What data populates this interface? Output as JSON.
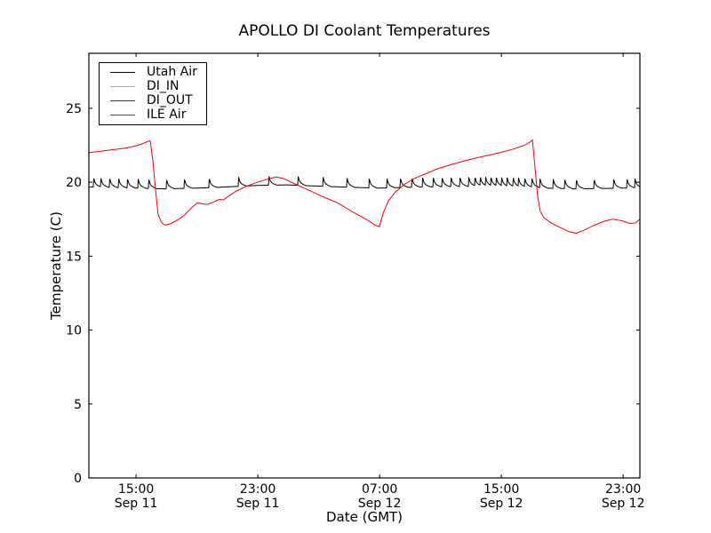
{
  "chart_data": {
    "type": "line",
    "title": "APOLLO DI Coolant Temperatures",
    "xlabel": "Date (GMT)",
    "ylabel": "Temperature (C)",
    "grid": false,
    "background": "#ffffff",
    "axis_color": "#000000",
    "xlim_hours": [
      0,
      36.2
    ],
    "ylim": [
      0,
      28.72
    ],
    "yticks": [
      0,
      5,
      10,
      15,
      20,
      25
    ],
    "xticks": [
      {
        "t": 3.1,
        "time": "15:00",
        "date": "Sep 11"
      },
      {
        "t": 11.1,
        "time": "23:00",
        "date": "Sep 11"
      },
      {
        "t": 19.1,
        "time": "07:00",
        "date": "Sep 12"
      },
      {
        "t": 27.1,
        "time": "15:00",
        "date": "Sep 12"
      },
      {
        "t": 35.1,
        "time": "23:00",
        "date": "Sep 12"
      }
    ],
    "legend": {
      "position": "upper-left",
      "entries": [
        {
          "label": "Utah Air",
          "color": "#000000"
        },
        {
          "label": "DI_IN",
          "color": "#ffa500"
        },
        {
          "label": "DI_OUT",
          "color": "#800080"
        },
        {
          "label": "ILE Air",
          "color": "#ff0000"
        }
      ]
    },
    "series": [
      {
        "name": "Utah Air",
        "color": "#000000",
        "render": "baseline_spikes",
        "opacity": 1,
        "baseline": [
          [
            0,
            19.68
          ],
          [
            2.5,
            19.62
          ],
          [
            5,
            19.55
          ],
          [
            8,
            19.63
          ],
          [
            11,
            19.78
          ],
          [
            13,
            19.82
          ],
          [
            16,
            19.7
          ],
          [
            19,
            19.6
          ],
          [
            22,
            19.68
          ],
          [
            26,
            19.73
          ],
          [
            29,
            19.66
          ],
          [
            30,
            19.6
          ],
          [
            32,
            19.55
          ],
          [
            34,
            19.58
          ],
          [
            36.2,
            19.62
          ]
        ],
        "spike_profile": [
          [
            0,
            0
          ],
          [
            0.03,
            0.62
          ],
          [
            0.1,
            0.34
          ],
          [
            0.2,
            0.18
          ],
          [
            0.35,
            0.08
          ],
          [
            0.55,
            0
          ]
        ],
        "spike_times": [
          0.29,
          0.76,
          1.34,
          1.93,
          2.51,
          3.21,
          3.91,
          5.08,
          6.25,
          7.88,
          9.81,
          11.8,
          13.72,
          15.36,
          16.93,
          18.39,
          19.56,
          20.44,
          21.2,
          21.9,
          22.6,
          23.18,
          23.77,
          24.35,
          24.93,
          25.34,
          25.69,
          26.04,
          26.39,
          26.74,
          27.09,
          27.45,
          27.85,
          28.2,
          28.61,
          29.08,
          29.61,
          30.48,
          31.24,
          32.0,
          33.17,
          34.45,
          35.33,
          35.85
        ]
      },
      {
        "name": "DI_IN",
        "color": "#ffa500",
        "render": "points",
        "opacity": 0.9,
        "points": [
          [
            0,
            0
          ],
          [
            36.2,
            0
          ]
        ]
      },
      {
        "name": "DI_OUT",
        "color": "#800080",
        "render": "points",
        "opacity": 0.75,
        "points": [
          [
            0,
            0
          ],
          [
            36.2,
            0
          ]
        ]
      },
      {
        "name": "ILE Air",
        "color": "#ff0000",
        "render": "points",
        "opacity": 1,
        "points": [
          [
            0,
            22.0
          ],
          [
            1.17,
            22.15
          ],
          [
            2.34,
            22.3
          ],
          [
            3.04,
            22.45
          ],
          [
            3.5,
            22.6
          ],
          [
            3.85,
            22.75
          ],
          [
            4.03,
            22.8
          ],
          [
            4.2,
            21.5
          ],
          [
            4.38,
            19.5
          ],
          [
            4.55,
            17.8
          ],
          [
            4.79,
            17.25
          ],
          [
            5.02,
            17.1
          ],
          [
            5.37,
            17.2
          ],
          [
            5.84,
            17.45
          ],
          [
            6.31,
            17.8
          ],
          [
            6.77,
            18.3
          ],
          [
            7.12,
            18.6
          ],
          [
            7.42,
            18.55
          ],
          [
            7.77,
            18.5
          ],
          [
            8.18,
            18.65
          ],
          [
            8.58,
            18.85
          ],
          [
            8.82,
            18.8
          ],
          [
            9.17,
            19.05
          ],
          [
            9.69,
            19.4
          ],
          [
            10.39,
            19.75
          ],
          [
            11.21,
            20.05
          ],
          [
            11.85,
            20.25
          ],
          [
            12.32,
            20.35
          ],
          [
            12.79,
            20.25
          ],
          [
            13.61,
            19.85
          ],
          [
            14.48,
            19.45
          ],
          [
            15.42,
            19.0
          ],
          [
            16.35,
            18.6
          ],
          [
            17.4,
            17.95
          ],
          [
            18.28,
            17.45
          ],
          [
            18.8,
            17.1
          ],
          [
            19.09,
            17.0
          ],
          [
            19.33,
            17.9
          ],
          [
            19.68,
            18.75
          ],
          [
            20.15,
            19.35
          ],
          [
            20.73,
            19.85
          ],
          [
            21.37,
            20.25
          ],
          [
            22.07,
            20.55
          ],
          [
            22.89,
            20.9
          ],
          [
            23.82,
            21.2
          ],
          [
            24.88,
            21.5
          ],
          [
            25.93,
            21.75
          ],
          [
            26.98,
            22.0
          ],
          [
            27.91,
            22.25
          ],
          [
            28.61,
            22.5
          ],
          [
            28.96,
            22.7
          ],
          [
            29.14,
            22.85
          ],
          [
            29.31,
            21.0
          ],
          [
            29.49,
            19.0
          ],
          [
            29.66,
            18.0
          ],
          [
            29.9,
            17.6
          ],
          [
            30.36,
            17.25
          ],
          [
            30.95,
            16.95
          ],
          [
            31.53,
            16.65
          ],
          [
            32.0,
            16.55
          ],
          [
            32.53,
            16.75
          ],
          [
            33.11,
            17.05
          ],
          [
            33.81,
            17.35
          ],
          [
            34.39,
            17.5
          ],
          [
            34.98,
            17.4
          ],
          [
            35.56,
            17.2
          ],
          [
            35.91,
            17.25
          ],
          [
            36.2,
            17.5
          ]
        ]
      }
    ]
  }
}
